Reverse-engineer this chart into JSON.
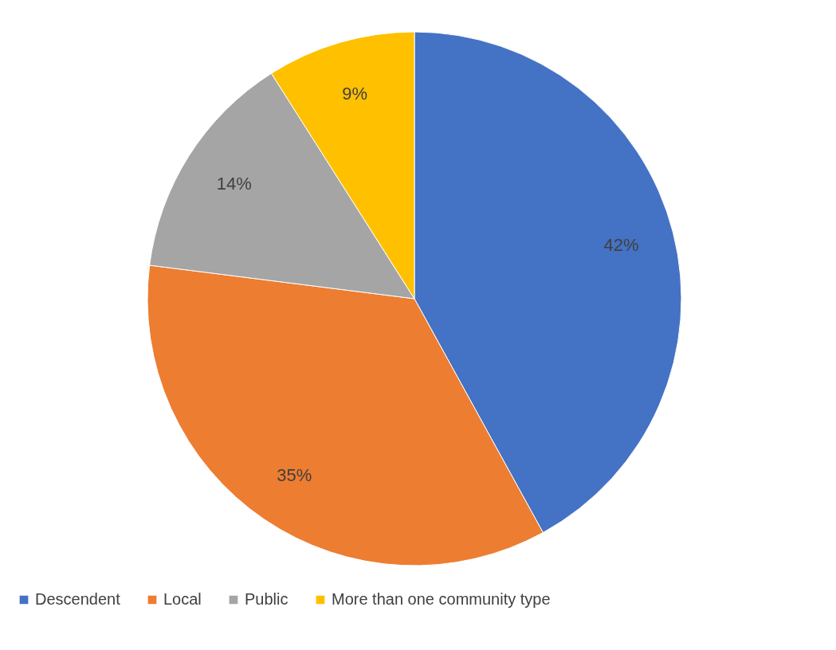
{
  "chart_data": {
    "type": "pie",
    "categories": [
      "Descendent",
      "Local",
      "Public",
      "More than one community type"
    ],
    "values": [
      42,
      35,
      14,
      9
    ],
    "colors": [
      "#4472c4",
      "#ed7d31",
      "#a5a5a5",
      "#ffc000"
    ],
    "value_labels": [
      "42%",
      "35%",
      "14%",
      "9%"
    ],
    "legend": "bottom"
  }
}
